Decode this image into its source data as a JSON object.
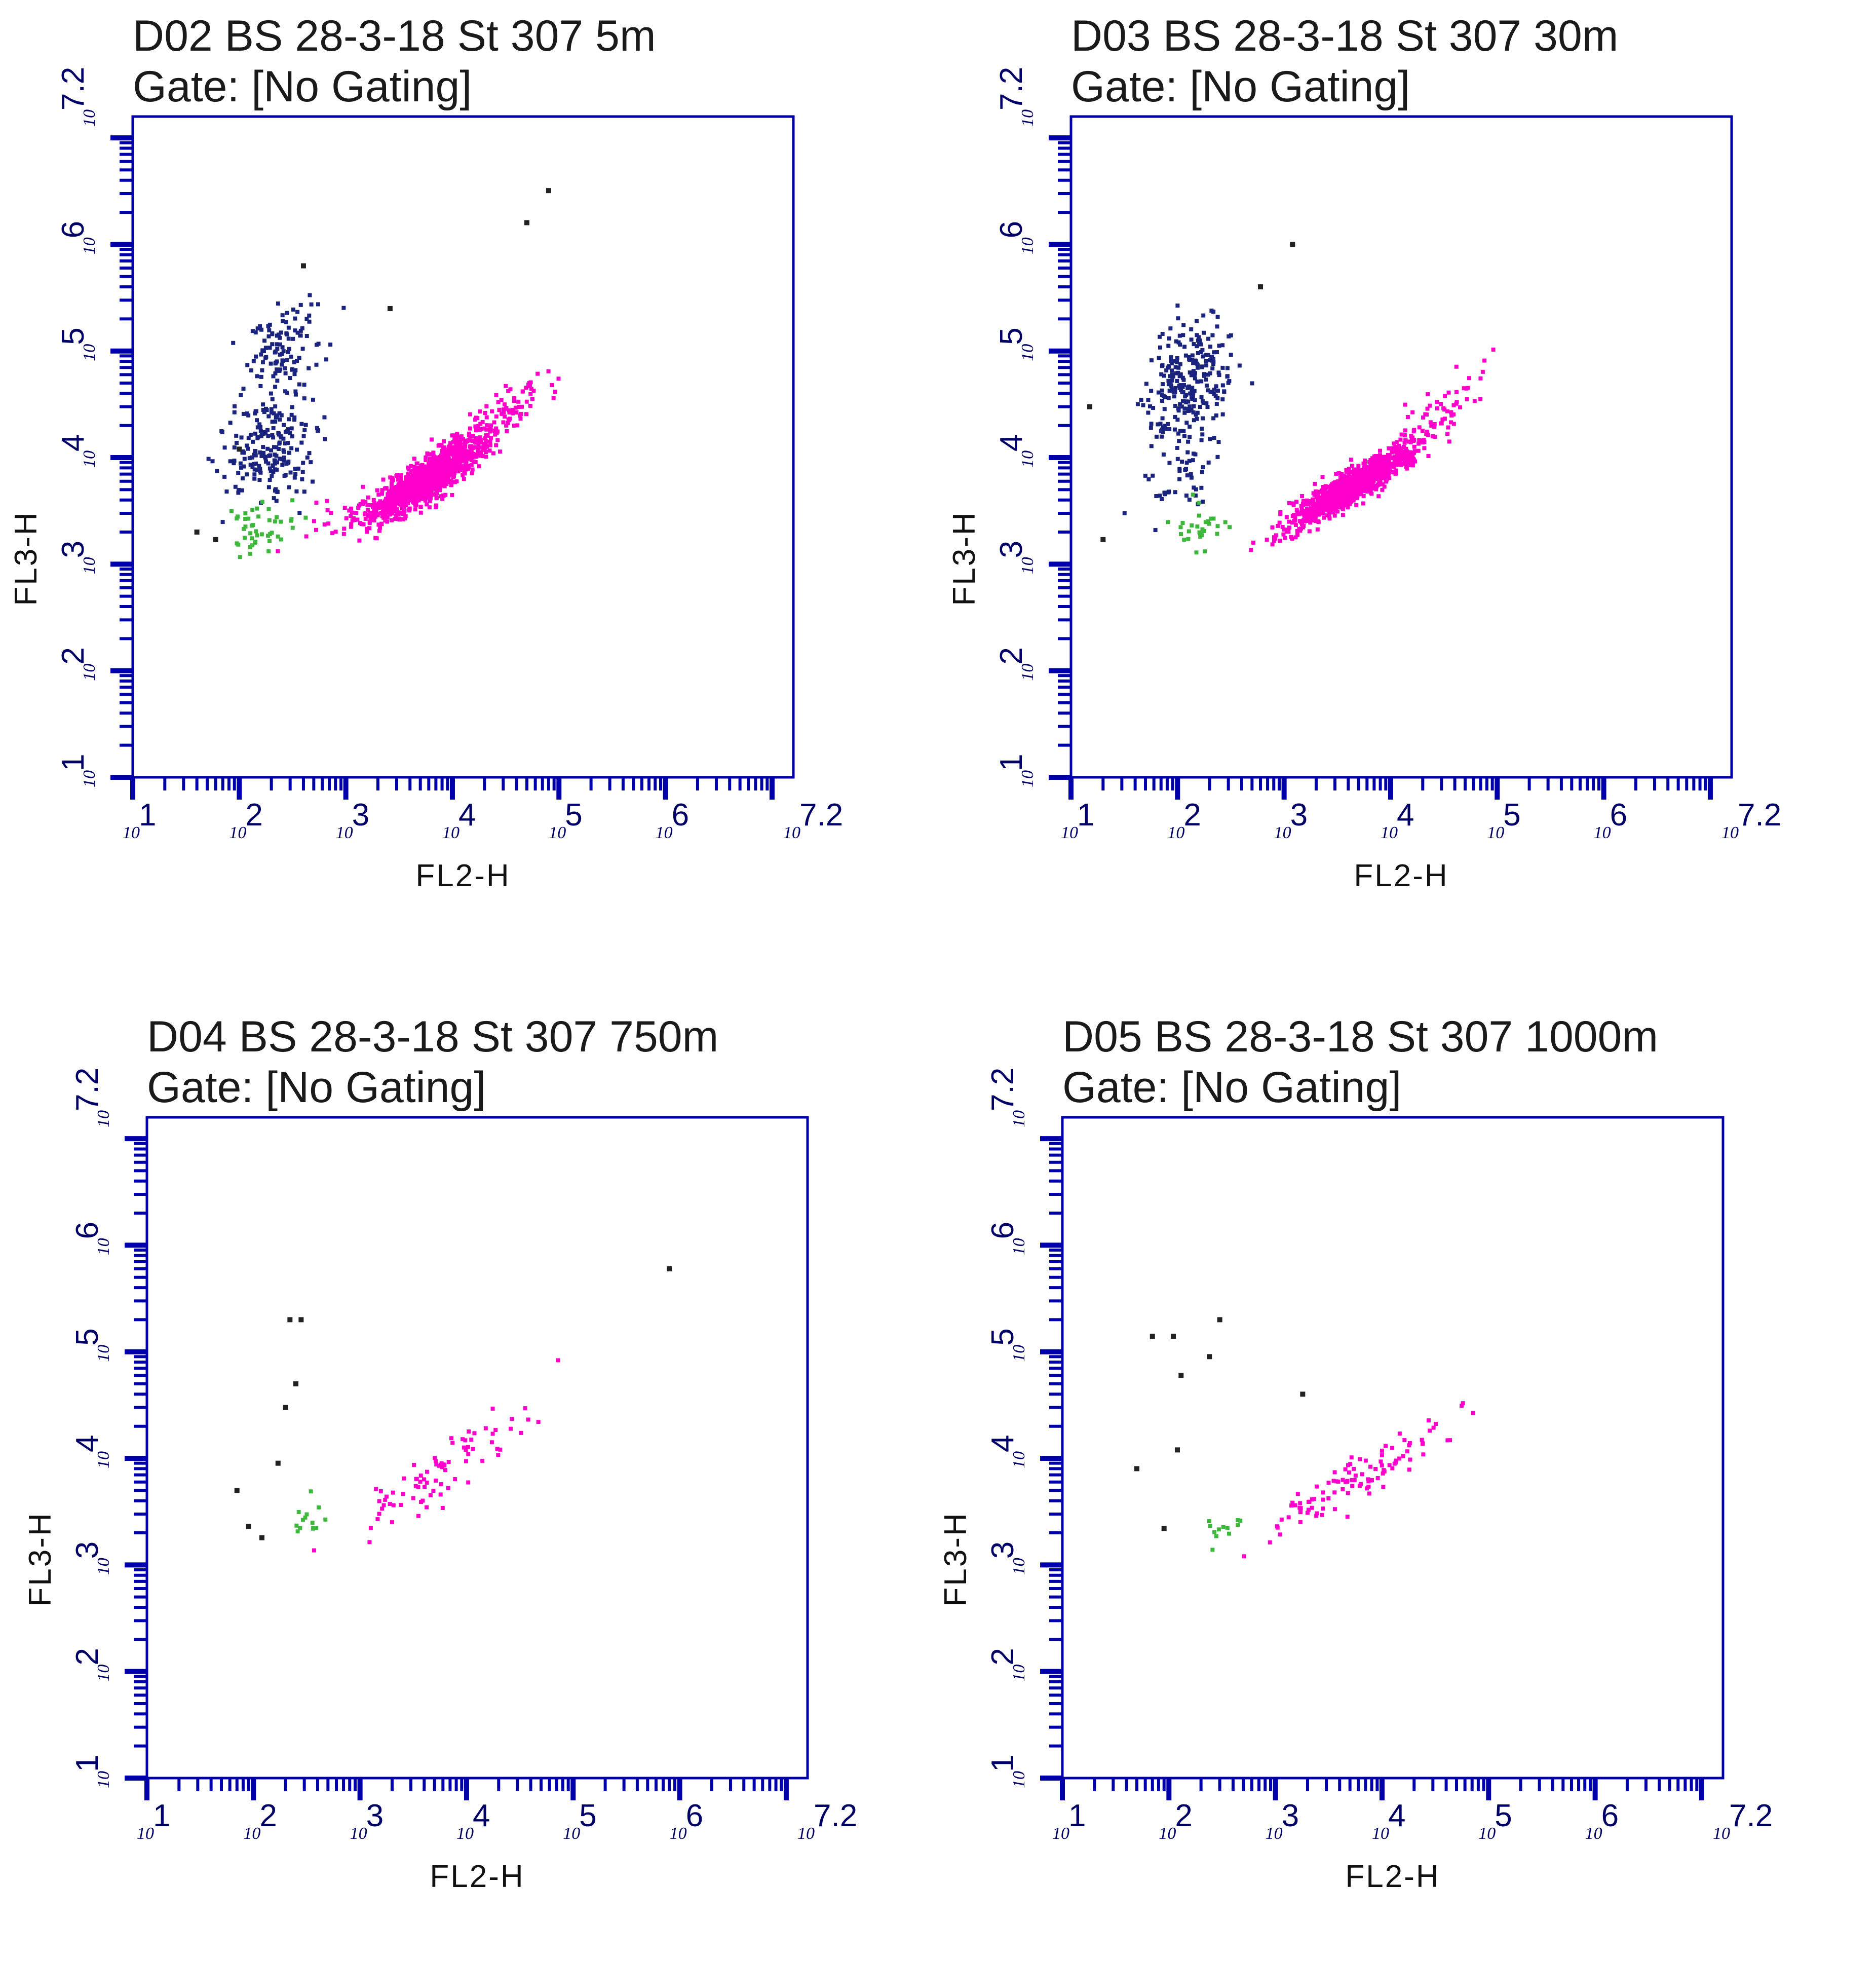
{
  "colors": {
    "axis": "#0000aa",
    "tick_text": "#000066",
    "pink_population": "#ff00cc",
    "blue_population": "#1a237e",
    "green_population": "#3db83d",
    "black_events": "#222222",
    "background": "#ffffff"
  },
  "chart_data": [
    {
      "type": "scatter",
      "title": "D02 BS 28-3-18 St 307 5m",
      "subtitle": "Gate: [No Gating]",
      "xlabel": "FL2-H",
      "ylabel": "FL3-H",
      "xscale": "log",
      "yscale": "log",
      "xlim": [
        10,
        15848932
      ],
      "ylim": [
        10,
        15848932
      ],
      "x_ticks": [
        {
          "base": "10",
          "exp": "1"
        },
        {
          "base": "10",
          "exp": "2"
        },
        {
          "base": "10",
          "exp": "3"
        },
        {
          "base": "10",
          "exp": "4"
        },
        {
          "base": "10",
          "exp": "5"
        },
        {
          "base": "10",
          "exp": "6"
        },
        {
          "base": "10",
          "exp": "7.2"
        }
      ],
      "y_ticks": [
        {
          "base": "10",
          "exp": "1"
        },
        {
          "base": "10",
          "exp": "2"
        },
        {
          "base": "10",
          "exp": "3"
        },
        {
          "base": "10",
          "exp": "4"
        },
        {
          "base": "10",
          "exp": "5"
        },
        {
          "base": "10",
          "exp": "6"
        },
        {
          "base": "10",
          "exp": "7.2"
        }
      ],
      "series": [
        {
          "color": "pink",
          "clusters": [
            {
              "cx": 6000,
              "cy": 6500,
              "sx": 0.25,
              "sy": 0.18,
              "rho": 0.85,
              "n": 1300
            },
            {
              "cx": 30000,
              "cy": 25000,
              "sx": 0.25,
              "sy": 0.2,
              "rho": 0.8,
              "n": 110
            },
            {
              "cx": 2000,
              "cy": 3500,
              "sx": 0.3,
              "sy": 0.15,
              "rho": 0.6,
              "n": 70
            }
          ]
        },
        {
          "color": "blue",
          "clusters": [
            {
              "cx": 260,
              "cy": 100000,
              "sx": 0.18,
              "sy": 0.2,
              "rho": 0.2,
              "n": 110
            },
            {
              "cx": 180,
              "cy": 13000,
              "sx": 0.22,
              "sy": 0.25,
              "rho": 0.1,
              "n": 210
            }
          ]
        },
        {
          "color": "green",
          "clusters": [
            {
              "cx": 160,
              "cy": 2200,
              "sx": 0.15,
              "sy": 0.12,
              "rho": 0.2,
              "n": 45
            }
          ]
        },
        {
          "color": "black",
          "clusters": [],
          "points": [
            [
              80000,
              3200000
            ],
            [
              50000,
              1600000
            ],
            [
              400,
              630000
            ],
            [
              60,
              1700
            ],
            [
              40,
              2000
            ],
            [
              100,
              12000
            ],
            [
              2600,
              250000
            ]
          ]
        }
      ]
    },
    {
      "type": "scatter",
      "title": "D03 BS 28-3-18 St 307 30m",
      "subtitle": "Gate: [No Gating]",
      "xlabel": "FL2-H",
      "ylabel": "FL3-H",
      "xscale": "log",
      "yscale": "log",
      "xlim": [
        10,
        15848932
      ],
      "ylim": [
        10,
        15848932
      ],
      "x_ticks": [
        {
          "base": "10",
          "exp": "1"
        },
        {
          "base": "10",
          "exp": "2"
        },
        {
          "base": "10",
          "exp": "3"
        },
        {
          "base": "10",
          "exp": "4"
        },
        {
          "base": "10",
          "exp": "5"
        },
        {
          "base": "10",
          "exp": "6"
        },
        {
          "base": "10",
          "exp": "7.2"
        }
      ],
      "y_ticks": [
        {
          "base": "10",
          "exp": "1"
        },
        {
          "base": "10",
          "exp": "2"
        },
        {
          "base": "10",
          "exp": "3"
        },
        {
          "base": "10",
          "exp": "4"
        },
        {
          "base": "10",
          "exp": "5"
        },
        {
          "base": "10",
          "exp": "6"
        },
        {
          "base": "10",
          "exp": "7.2"
        }
      ],
      "series": [
        {
          "color": "pink",
          "clusters": [
            {
              "cx": 4500,
              "cy": 5500,
              "sx": 0.28,
              "sy": 0.18,
              "rho": 0.9,
              "n": 1100
            },
            {
              "cx": 25000,
              "cy": 25000,
              "sx": 0.25,
              "sy": 0.22,
              "rho": 0.8,
              "n": 60
            }
          ]
        },
        {
          "color": "blue",
          "clusters": [
            {
              "cx": 130,
              "cy": 50000,
              "sx": 0.2,
              "sy": 0.28,
              "rho": 0.3,
              "n": 260
            },
            {
              "cx": 110,
              "cy": 7000,
              "sx": 0.18,
              "sy": 0.2,
              "rho": 0.1,
              "n": 50
            }
          ]
        },
        {
          "color": "green",
          "clusters": [
            {
              "cx": 150,
              "cy": 2200,
              "sx": 0.18,
              "sy": 0.12,
              "rho": 0.1,
              "n": 30
            }
          ]
        },
        {
          "color": "black",
          "clusters": [],
          "points": [
            [
              15,
              30000
            ],
            [
              20,
              1700
            ],
            [
              1200,
              1000000
            ],
            [
              600,
              400000
            ]
          ]
        }
      ]
    },
    {
      "type": "scatter",
      "title": "D04 BS 28-3-18 St 307 750m",
      "subtitle": "Gate: [No Gating]",
      "xlabel": "FL2-H",
      "ylabel": "FL3-H",
      "xscale": "log",
      "yscale": "log",
      "xlim": [
        10,
        15848932
      ],
      "ylim": [
        10,
        15848932
      ],
      "x_ticks": [
        {
          "base": "10",
          "exp": "1"
        },
        {
          "base": "10",
          "exp": "2"
        },
        {
          "base": "10",
          "exp": "3"
        },
        {
          "base": "10",
          "exp": "4"
        },
        {
          "base": "10",
          "exp": "5"
        },
        {
          "base": "10",
          "exp": "6"
        },
        {
          "base": "10",
          "exp": "7.2"
        }
      ],
      "y_ticks": [
        {
          "base": "10",
          "exp": "1"
        },
        {
          "base": "10",
          "exp": "2"
        },
        {
          "base": "10",
          "exp": "3"
        },
        {
          "base": "10",
          "exp": "4"
        },
        {
          "base": "10",
          "exp": "5"
        },
        {
          "base": "10",
          "exp": "6"
        },
        {
          "base": "10",
          "exp": "7.2"
        }
      ],
      "series": [
        {
          "color": "pink",
          "clusters": [
            {
              "cx": 6000,
              "cy": 8000,
              "sx": 0.45,
              "sy": 0.32,
              "rho": 0.9,
              "n": 85
            }
          ]
        },
        {
          "color": "blue",
          "clusters": [],
          "points": []
        },
        {
          "color": "green",
          "clusters": [
            {
              "cx": 350,
              "cy": 2500,
              "sx": 0.12,
              "sy": 0.1,
              "rho": 0.2,
              "n": 14
            }
          ]
        },
        {
          "color": "black",
          "clusters": [],
          "points": [
            [
              280,
              200000
            ],
            [
              220,
              200000
            ],
            [
              250,
              50000
            ],
            [
              200,
              30000
            ],
            [
              170,
              9000
            ],
            [
              70,
              5000
            ],
            [
              120,
              1800
            ],
            [
              800000,
              600000
            ],
            [
              90,
              2300
            ]
          ]
        }
      ]
    },
    {
      "type": "scatter",
      "title": "D05 BS 28-3-18 St 307 1000m",
      "subtitle": "Gate: [No Gating]",
      "xlabel": "FL2-H",
      "ylabel": "FL3-H",
      "xscale": "log",
      "yscale": "log",
      "xlim": [
        10,
        15848932
      ],
      "ylim": [
        10,
        15848932
      ],
      "x_ticks": [
        {
          "base": "10",
          "exp": "1"
        },
        {
          "base": "10",
          "exp": "2"
        },
        {
          "base": "10",
          "exp": "3"
        },
        {
          "base": "10",
          "exp": "4"
        },
        {
          "base": "10",
          "exp": "5"
        },
        {
          "base": "10",
          "exp": "6"
        },
        {
          "base": "10",
          "exp": "7.2"
        }
      ],
      "y_ticks": [
        {
          "base": "10",
          "exp": "1"
        },
        {
          "base": "10",
          "exp": "2"
        },
        {
          "base": "10",
          "exp": "3"
        },
        {
          "base": "10",
          "exp": "4"
        },
        {
          "base": "10",
          "exp": "5"
        },
        {
          "base": "10",
          "exp": "6"
        },
        {
          "base": "10",
          "exp": "7.2"
        }
      ],
      "series": [
        {
          "color": "pink",
          "clusters": [
            {
              "cx": 6000,
              "cy": 6500,
              "sx": 0.4,
              "sy": 0.28,
              "rho": 0.9,
              "n": 110
            }
          ]
        },
        {
          "color": "blue",
          "clusters": [],
          "points": []
        },
        {
          "color": "green",
          "clusters": [
            {
              "cx": 300,
              "cy": 2300,
              "sx": 0.12,
              "sy": 0.08,
              "rho": 0.2,
              "n": 12
            }
          ]
        },
        {
          "color": "black",
          "clusters": [],
          "points": [
            [
              70,
              140000
            ],
            [
              110,
              140000
            ],
            [
              300,
              200000
            ],
            [
              240,
              90000
            ],
            [
              130,
              60000
            ],
            [
              50,
              8000
            ],
            [
              90,
              2200
            ],
            [
              120,
              12000
            ],
            [
              1800,
              40000
            ]
          ]
        }
      ]
    }
  ]
}
